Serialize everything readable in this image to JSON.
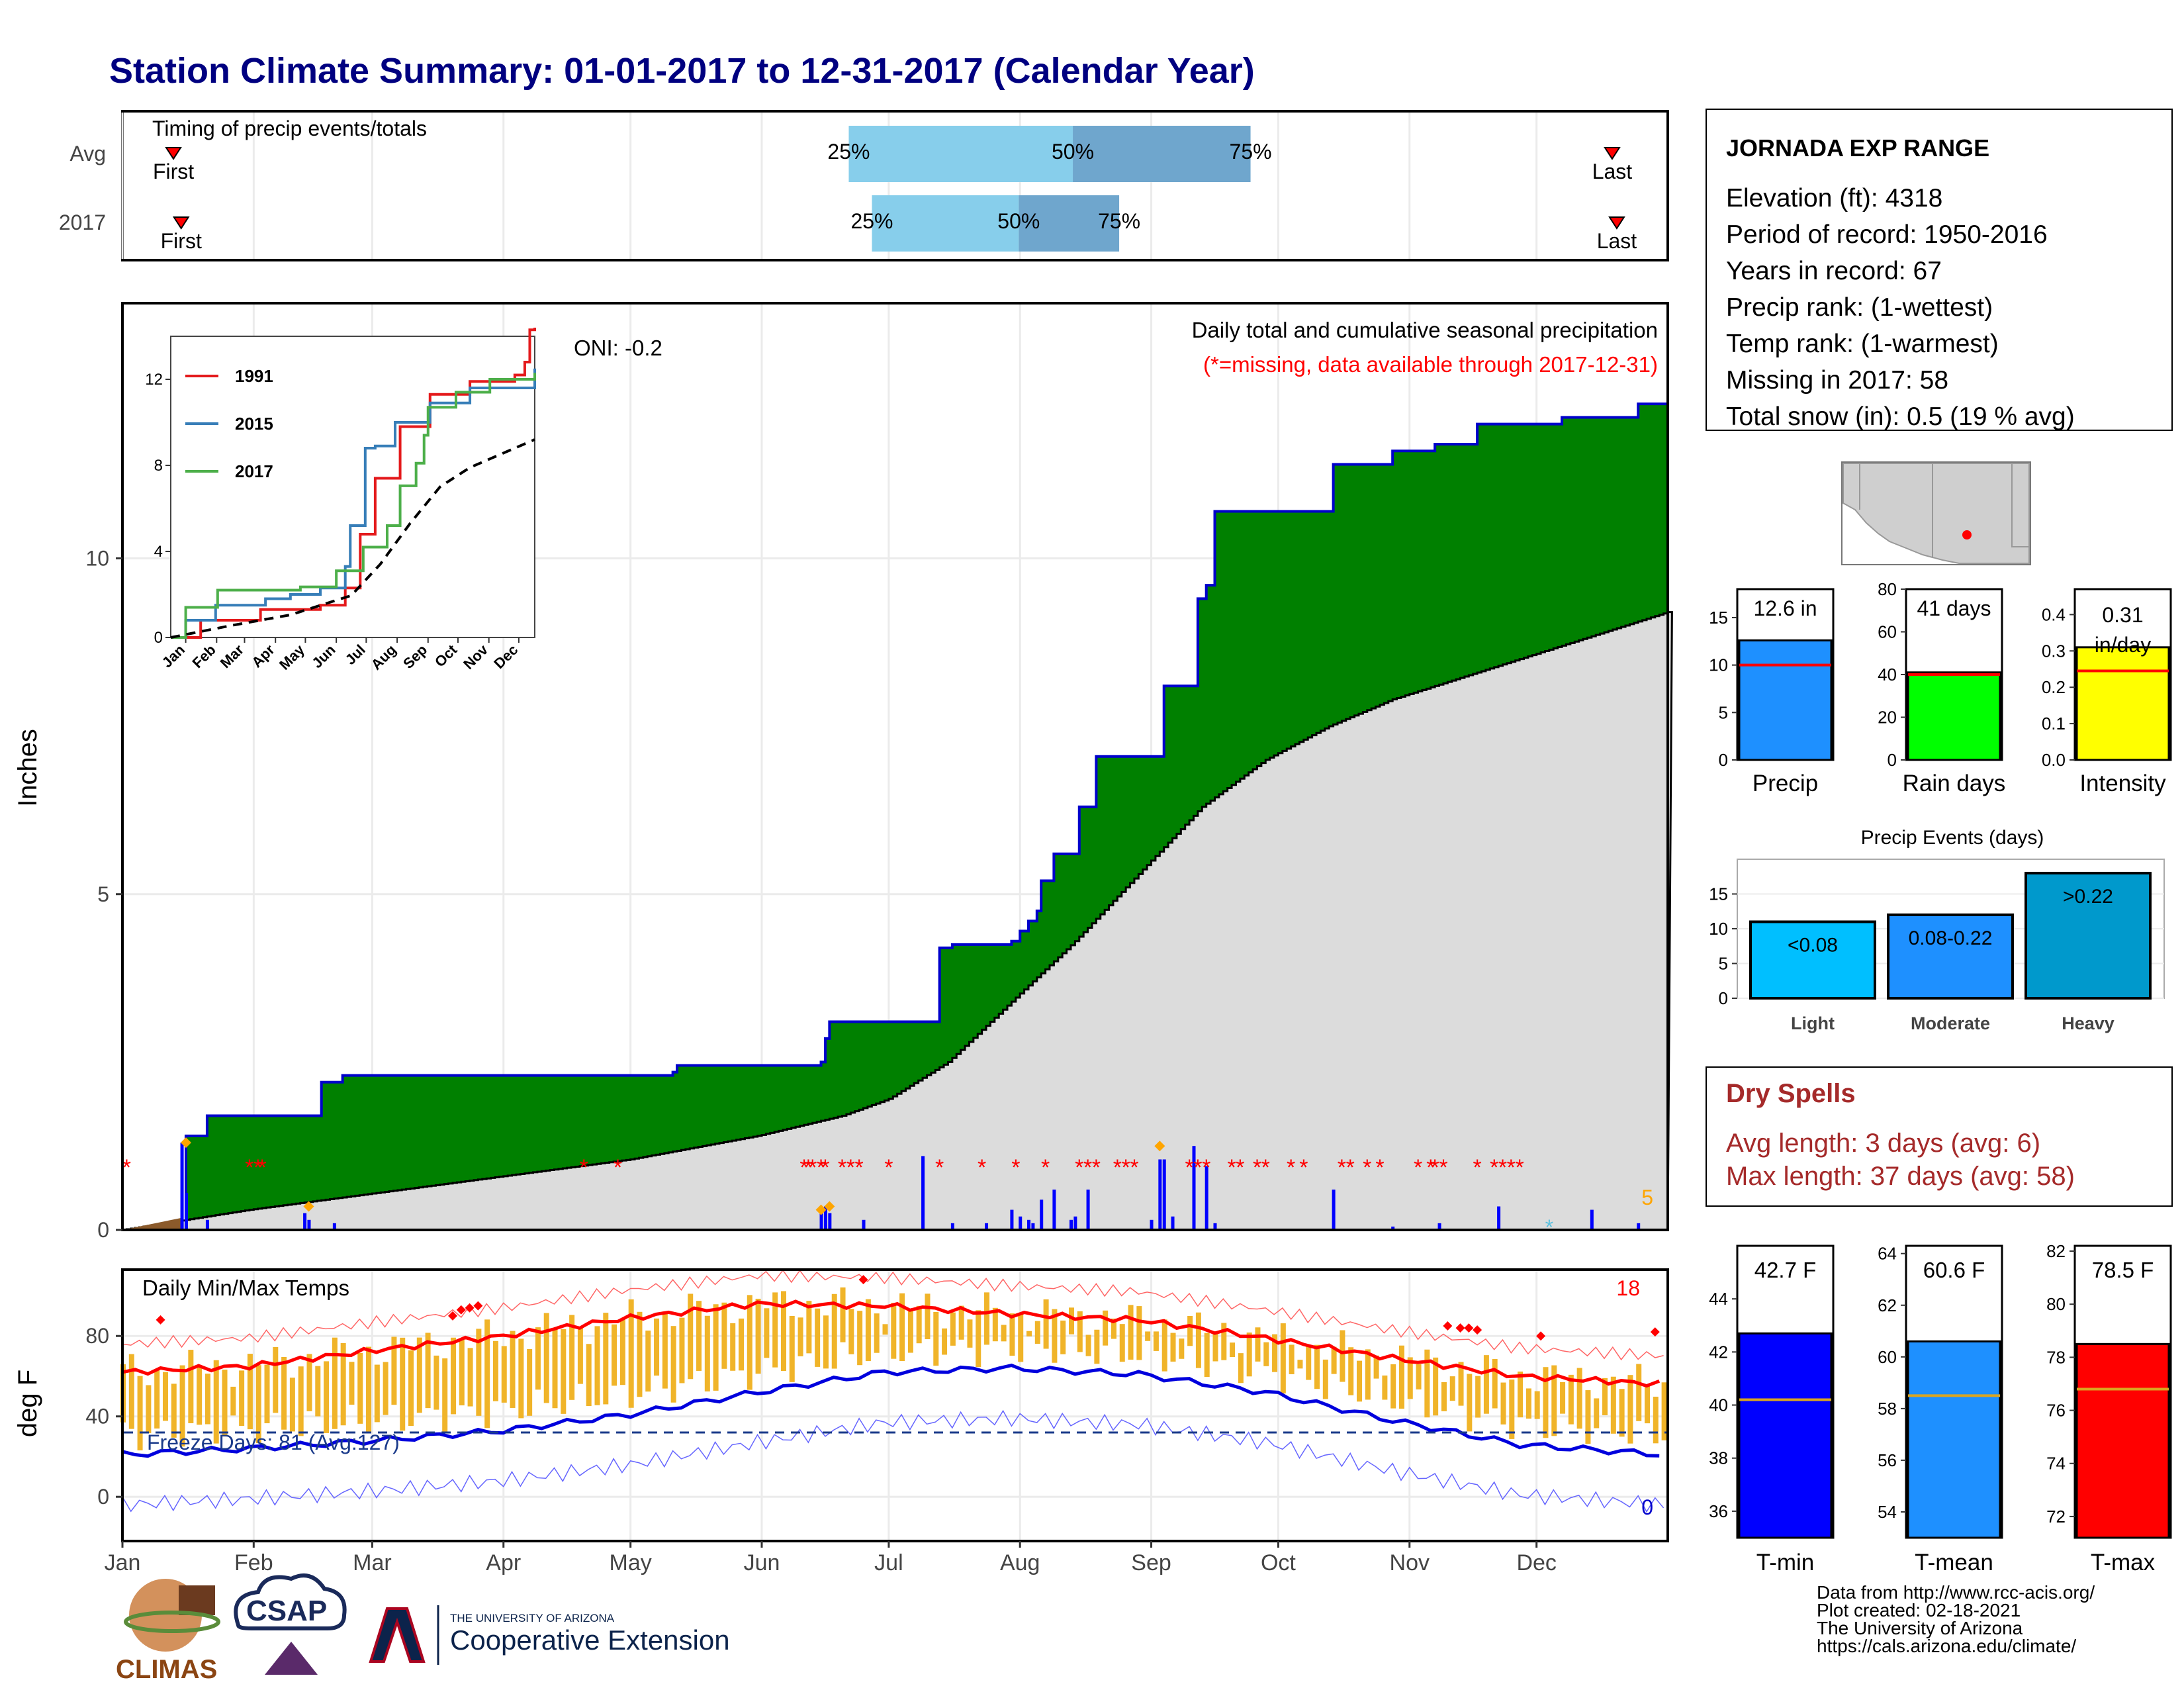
{
  "title": "Station Climate Summary: 01-01-2017 to 12-31-2017 (Calendar Year)",
  "timing": {
    "label": "Timing of precip events/totals",
    "rows": [
      {
        "name": "Avg",
        "q25": 0.47,
        "q50": 0.615,
        "q75": 0.73,
        "first": 0.033,
        "last": 0.964
      },
      {
        "name": "2017",
        "q25": 0.485,
        "q50": 0.58,
        "q75": 0.645,
        "first": 0.038,
        "last": 0.967
      }
    ],
    "first_label": "First",
    "last_label": "Last",
    "p25": "25%",
    "p50": "50%",
    "p75": "75%"
  },
  "precip": {
    "ylabel": "Inches",
    "title": "Daily total and cumulative seasonal precipitation",
    "missing_note": "(*=missing, data available through 2017-12-31)",
    "oni": "ONI: -0.2",
    "snow_days_count": "5",
    "colors": {
      "cum": "#008000",
      "avg": "#dcdcdc",
      "daily": "#0000ff",
      "missing": "#ff0000"
    }
  },
  "inset": {
    "legend": [
      "1991",
      "2015",
      "2017"
    ],
    "colors": [
      "#e41a1c",
      "#377eb8",
      "#4daf4a"
    ],
    "yticks": [
      "0",
      "4",
      "8",
      "12"
    ],
    "months": [
      "Jan",
      "Feb",
      "Mar",
      "Apr",
      "May",
      "Jun",
      "Jul",
      "Aug",
      "Sep",
      "Oct",
      "Nov",
      "Dec"
    ]
  },
  "temps": {
    "ylabel": "deg F",
    "title": "Daily Min/Max Temps",
    "freeze_label": "Freeze Days: 81 (Avg:127)",
    "max_record_count": "18",
    "min_record_count": "0",
    "yticks": [
      "0",
      "40",
      "80"
    ]
  },
  "months": [
    "Jan",
    "Feb",
    "Mar",
    "Apr",
    "May",
    "Jun",
    "Jul",
    "Aug",
    "Sep",
    "Oct",
    "Nov",
    "Dec"
  ],
  "station": {
    "name": "JORNADA EXP RANGE",
    "lines": [
      "Elevation (ft): 4318",
      "Period of record: 1950-2016",
      "Years in record: 67",
      "Precip rank:  (1-wettest)",
      "Temp rank:  (1-warmest)",
      "Missing in 2017: 58",
      "Total snow (in): 0.5 (19 % avg)"
    ]
  },
  "mini_bars": [
    {
      "label": "Precip",
      "value_text": "12.6 in",
      "value": 12.6,
      "avg": 10,
      "ymax": 18,
      "ticks": [
        "0",
        "5",
        "10",
        "15"
      ],
      "color": "#1e90ff"
    },
    {
      "label": "Rain days",
      "value_text": "41 days",
      "value": 41,
      "avg": 40,
      "ymax": 80,
      "ticks": [
        "0",
        "20",
        "40",
        "60",
        "80"
      ],
      "color": "#00ff00"
    },
    {
      "label": "Intensity",
      "value_text": "0.31 in/day",
      "value": 0.31,
      "avg": 0.245,
      "ymax": 0.47,
      "ticks": [
        "0.0",
        "0.1",
        "0.2",
        "0.3",
        "0.4"
      ],
      "color": "#ffff00"
    }
  ],
  "events": {
    "title": "Precip Events (days)",
    "bars": [
      {
        "label": "Light",
        "tag": "<0.08",
        "value": 11
      },
      {
        "label": "Moderate",
        "tag": "0.08-0.22",
        "value": 12
      },
      {
        "label": "Heavy",
        "tag": ">0.22",
        "value": 18
      }
    ],
    "ticks": [
      "0",
      "5",
      "10",
      "15"
    ],
    "colors": [
      "#00bfff",
      "#1e90ff",
      "#0099cc"
    ]
  },
  "dry_spells": {
    "title": "Dry Spells",
    "avg_line": "Avg length: 3 days (avg: 6)",
    "max_line": "Max length: 37 days (avg: 58)"
  },
  "temp_bars": [
    {
      "label": "T-min",
      "value_text": "42.7 F",
      "value": 42.7,
      "avg": 40.2,
      "ymin": 35,
      "ymax": 46,
      "ticks": [
        "36",
        "38",
        "40",
        "42",
        "44"
      ],
      "color": "#0000ff"
    },
    {
      "label": "T-mean",
      "value_text": "60.6 F",
      "value": 60.6,
      "avg": 58.5,
      "ymin": 53,
      "ymax": 64.3,
      "ticks": [
        "54",
        "56",
        "58",
        "60",
        "62",
        "64"
      ],
      "color": "#1e90ff"
    },
    {
      "label": "T-max",
      "value_text": "78.5 F",
      "value": 78.5,
      "avg": 76.8,
      "ymin": 71.2,
      "ymax": 82.2,
      "ticks": [
        "72",
        "74",
        "76",
        "78",
        "80",
        "82"
      ],
      "color": "#ff0000"
    }
  ],
  "footer": {
    "lines": [
      "Data from http://www.rcc-acis.org/",
      "Plot created: 02-18-2021",
      "The University of Arizona",
      "https://cals.arizona.edu/climate/"
    ],
    "climas": "CLIMAS",
    "csap": "CSAP",
    "ua_small": "THE UNIVERSITY OF ARIZONA",
    "ua_big": "Cooperative Extension"
  },
  "chart_data": {
    "type": "area",
    "title": "Daily total and cumulative seasonal precipitation",
    "ylabel": "Inches",
    "ylim": [
      0,
      13.8
    ],
    "x_months": [
      "Jan",
      "Feb",
      "Mar",
      "Apr",
      "May",
      "Jun",
      "Jul",
      "Aug",
      "Sep",
      "Oct",
      "Nov",
      "Dec"
    ],
    "cumulative_2017": [
      [
        0,
        0
      ],
      [
        15,
        1.4
      ],
      [
        20,
        1.7
      ],
      [
        47,
        2.2
      ],
      [
        52,
        2.3
      ],
      [
        130,
        2.35
      ],
      [
        131,
        2.45
      ],
      [
        165,
        2.5
      ],
      [
        166,
        2.85
      ],
      [
        167,
        3.1
      ],
      [
        192,
        3.1
      ],
      [
        193,
        4.2
      ],
      [
        196,
        4.25
      ],
      [
        210,
        4.3
      ],
      [
        212,
        4.45
      ],
      [
        214,
        4.6
      ],
      [
        216,
        4.75
      ],
      [
        217,
        5.2
      ],
      [
        220,
        5.6
      ],
      [
        225,
        5.6
      ],
      [
        226,
        6.3
      ],
      [
        230,
        7.05
      ],
      [
        245,
        7.05
      ],
      [
        246,
        8.1
      ],
      [
        253,
        8.1
      ],
      [
        254,
        9.4
      ],
      [
        256,
        9.6
      ],
      [
        258,
        10.7
      ],
      [
        285,
        10.7
      ],
      [
        286,
        11.4
      ],
      [
        297,
        11.4
      ],
      [
        300,
        11.6
      ],
      [
        310,
        11.7
      ],
      [
        318,
        11.7
      ],
      [
        320,
        12.0
      ],
      [
        338,
        12.0
      ],
      [
        340,
        12.1
      ],
      [
        358,
        12.3
      ],
      [
        365,
        12.3
      ]
    ],
    "average_cumulative": [
      [
        0,
        0
      ],
      [
        30,
        0.3
      ],
      [
        60,
        0.55
      ],
      [
        90,
        0.8
      ],
      [
        120,
        1.05
      ],
      [
        150,
        1.4
      ],
      [
        170,
        1.7
      ],
      [
        181,
        1.95
      ],
      [
        195,
        2.5
      ],
      [
        210,
        3.4
      ],
      [
        225,
        4.3
      ],
      [
        240,
        5.3
      ],
      [
        255,
        6.3
      ],
      [
        270,
        7.0
      ],
      [
        285,
        7.5
      ],
      [
        300,
        7.9
      ],
      [
        320,
        8.3
      ],
      [
        340,
        8.7
      ],
      [
        365,
        9.2
      ]
    ],
    "daily_2017": [
      [
        14,
        1.3
      ],
      [
        15,
        0.55
      ],
      [
        20,
        0.15
      ],
      [
        43,
        0.25
      ],
      [
        44,
        0.15
      ],
      [
        50,
        0.1
      ],
      [
        165,
        0.3
      ],
      [
        166,
        0.35
      ],
      [
        167,
        0.25
      ],
      [
        175,
        0.15
      ],
      [
        189,
        1.1
      ],
      [
        196,
        0.1
      ],
      [
        204,
        0.1
      ],
      [
        210,
        0.3
      ],
      [
        212,
        0.2
      ],
      [
        214,
        0.15
      ],
      [
        215,
        0.1
      ],
      [
        217,
        0.45
      ],
      [
        220,
        0.6
      ],
      [
        224,
        0.15
      ],
      [
        225,
        0.2
      ],
      [
        228,
        0.6
      ],
      [
        243,
        0.15
      ],
      [
        245,
        1.05
      ],
      [
        246,
        1.05
      ],
      [
        248,
        0.2
      ],
      [
        253,
        1.25
      ],
      [
        256,
        0.95
      ],
      [
        258,
        0.1
      ],
      [
        286,
        0.6
      ],
      [
        300,
        0.05
      ],
      [
        311,
        0.1
      ],
      [
        325,
        0.35
      ],
      [
        347,
        0.3
      ],
      [
        358,
        0.1
      ]
    ],
    "temperature": {
      "ylabel": "deg F",
      "mean_max": [
        [
          0,
          62
        ],
        [
          30,
          65
        ],
        [
          60,
          73
        ],
        [
          90,
          80
        ],
        [
          120,
          89
        ],
        [
          150,
          96
        ],
        [
          180,
          95
        ],
        [
          210,
          91
        ],
        [
          240,
          88
        ],
        [
          270,
          79
        ],
        [
          300,
          69
        ],
        [
          330,
          60
        ],
        [
          364,
          56
        ]
      ],
      "mean_min": [
        [
          0,
          21
        ],
        [
          30,
          24
        ],
        [
          60,
          28
        ],
        [
          90,
          33
        ],
        [
          120,
          41
        ],
        [
          150,
          52
        ],
        [
          180,
          62
        ],
        [
          210,
          64
        ],
        [
          240,
          61
        ],
        [
          270,
          52
        ],
        [
          300,
          38
        ],
        [
          330,
          26
        ],
        [
          364,
          21
        ]
      ],
      "freeze_line": 32
    }
  }
}
